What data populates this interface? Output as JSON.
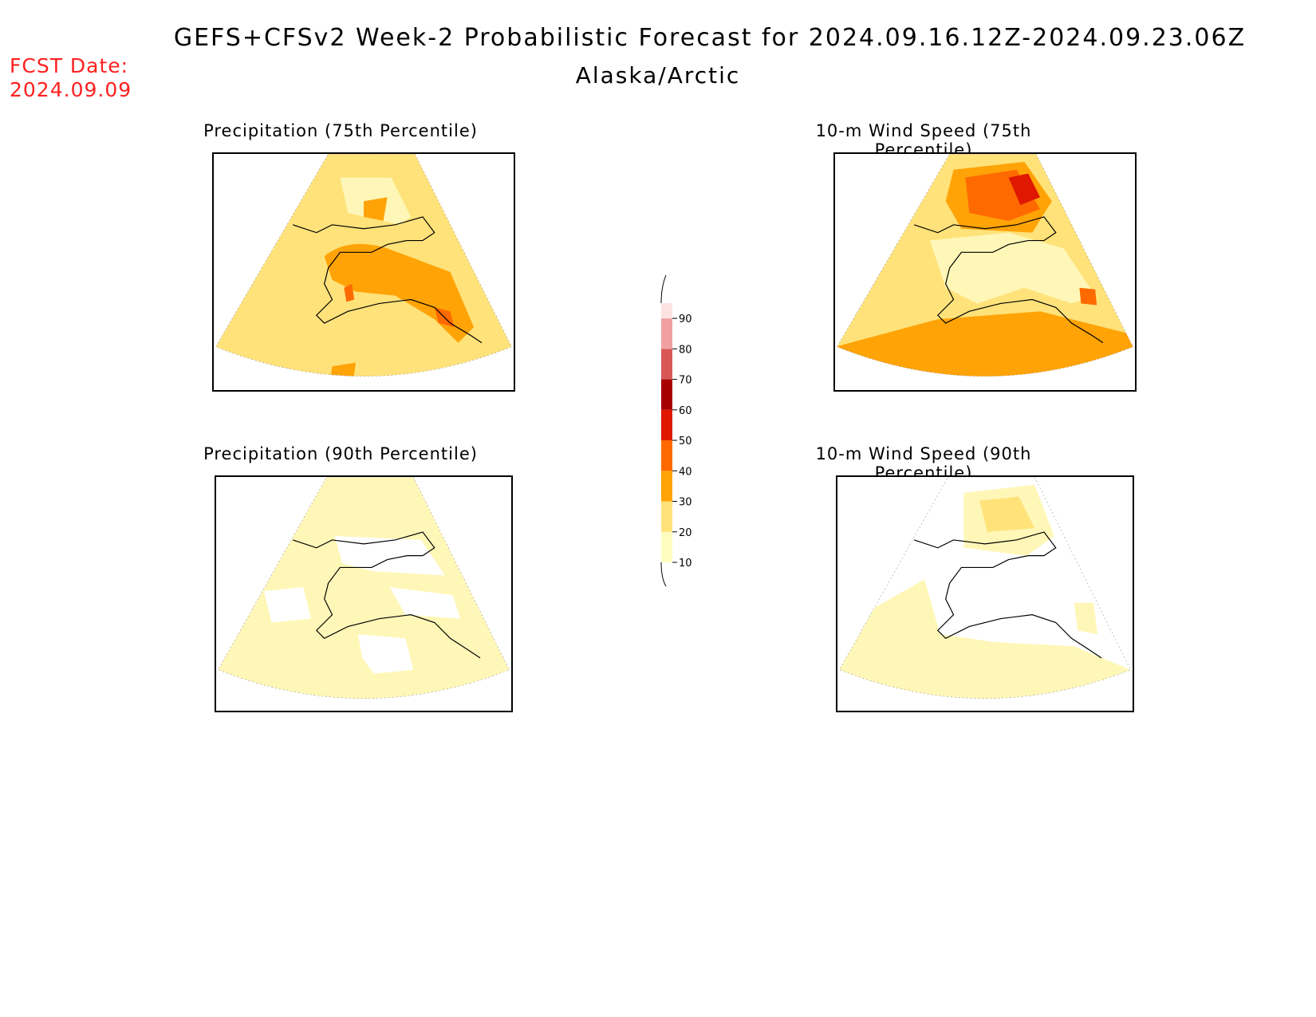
{
  "header": {
    "title": "GEFS+CFSv2 Week-2 Probabilistic Forecast for 2024.09.16.12Z-2024.09.23.06Z",
    "region": "Alaska/Arctic",
    "fcst_label": "FCST Date:",
    "fcst_date": "2024.09.09"
  },
  "panels": [
    {
      "title": "Precipitation (75th Percentile)"
    },
    {
      "title": "10-m Wind Speed (75th Percentile)"
    },
    {
      "title": "Precipitation (90th Percentile)"
    },
    {
      "title": "10-m Wind Speed (90th Percentile)"
    }
  ],
  "colorbar": {
    "levels": [
      "10",
      "20",
      "30",
      "40",
      "50",
      "60",
      "70",
      "80",
      "90"
    ],
    "colors": [
      "#fffcc0",
      "#ffe27a",
      "#ffa306",
      "#ff6a00",
      "#e01800",
      "#a80000",
      "#d85858",
      "#f0a0a0",
      "#fde2e2"
    ]
  },
  "palette": {
    "p10": "#fff7b8",
    "p20": "#ffe27a",
    "p30": "#ffa306",
    "p40": "#ff6a00",
    "p50": "#e01800",
    "coast": "#000000",
    "title_red": "#ff2020"
  }
}
